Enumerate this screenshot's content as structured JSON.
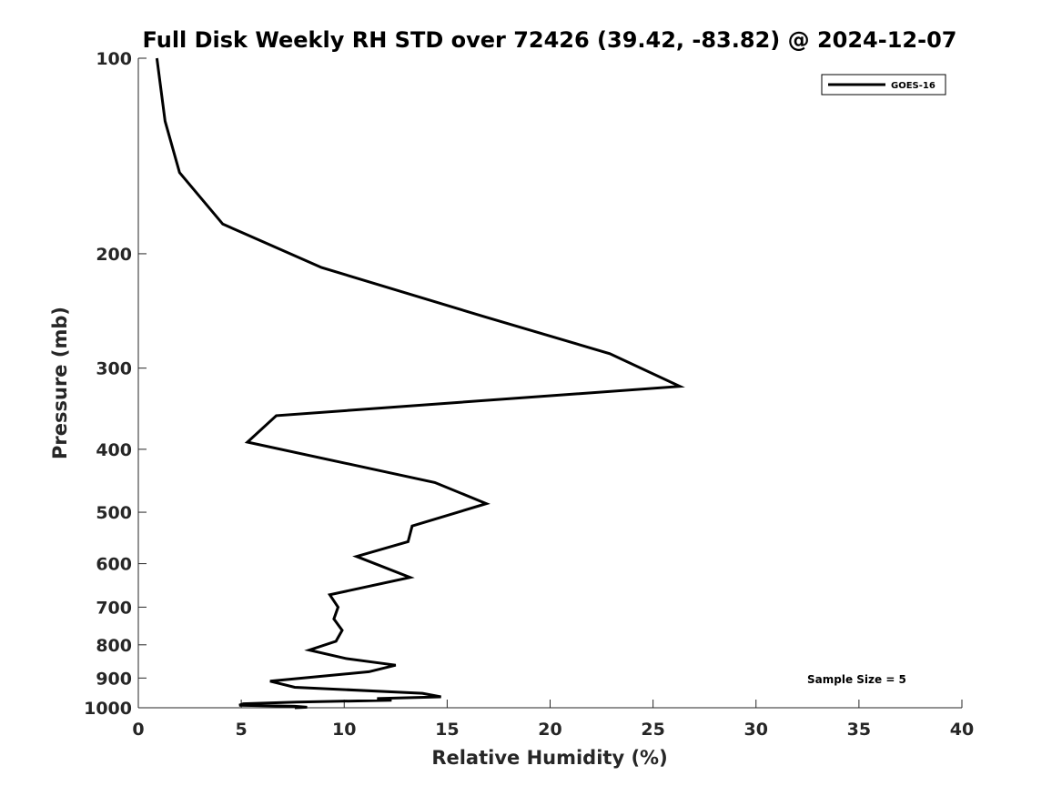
{
  "chart_data": {
    "type": "line",
    "title": "Full Disk Weekly RH STD over 72426 (39.42, -83.82) @ 2024-12-07",
    "xlabel": "Relative Humidity (%)",
    "ylabel": "Pressure (mb)",
    "xlim": [
      0,
      40
    ],
    "ylim": [
      100,
      1000
    ],
    "y_scale": "log",
    "y_direction": "reversed",
    "x_ticks": [
      "0",
      "5",
      "10",
      "15",
      "20",
      "25",
      "30",
      "35",
      "40"
    ],
    "y_ticks": [
      "100",
      "200",
      "300",
      "400",
      "500",
      "600",
      "700",
      "800",
      "900",
      "1000"
    ],
    "grid": false,
    "legend_position": "top-right",
    "annotation": "Sample Size = 5",
    "series": [
      {
        "name": "GOES-16",
        "color": "#000000",
        "points": [
          [
            0.9,
            100
          ],
          [
            1.3,
            125
          ],
          [
            2.0,
            150
          ],
          [
            4.1,
            180
          ],
          [
            8.9,
            210
          ],
          [
            16.8,
            250
          ],
          [
            22.9,
            285
          ],
          [
            26.3,
            320
          ],
          [
            6.7,
            355
          ],
          [
            5.3,
            390
          ],
          [
            14.4,
            450
          ],
          [
            16.9,
            485
          ],
          [
            13.3,
            525
          ],
          [
            13.1,
            555
          ],
          [
            10.6,
            585
          ],
          [
            13.2,
            630
          ],
          [
            9.3,
            670
          ],
          [
            9.7,
            700
          ],
          [
            9.5,
            730
          ],
          [
            9.9,
            760
          ],
          [
            9.6,
            790
          ],
          [
            8.3,
            815
          ],
          [
            10.1,
            840
          ],
          [
            12.5,
            860
          ],
          [
            11.2,
            880
          ],
          [
            6.4,
            910
          ],
          [
            7.6,
            930
          ],
          [
            13.8,
            950
          ],
          [
            14.7,
            962
          ],
          [
            11.6,
            968
          ],
          [
            12.3,
            974
          ],
          [
            7.7,
            980
          ],
          [
            5.1,
            986
          ],
          [
            4.9,
            991
          ],
          [
            7.6,
            995
          ],
          [
            8.2,
            998
          ],
          [
            7.6,
            1000
          ]
        ]
      }
    ]
  }
}
